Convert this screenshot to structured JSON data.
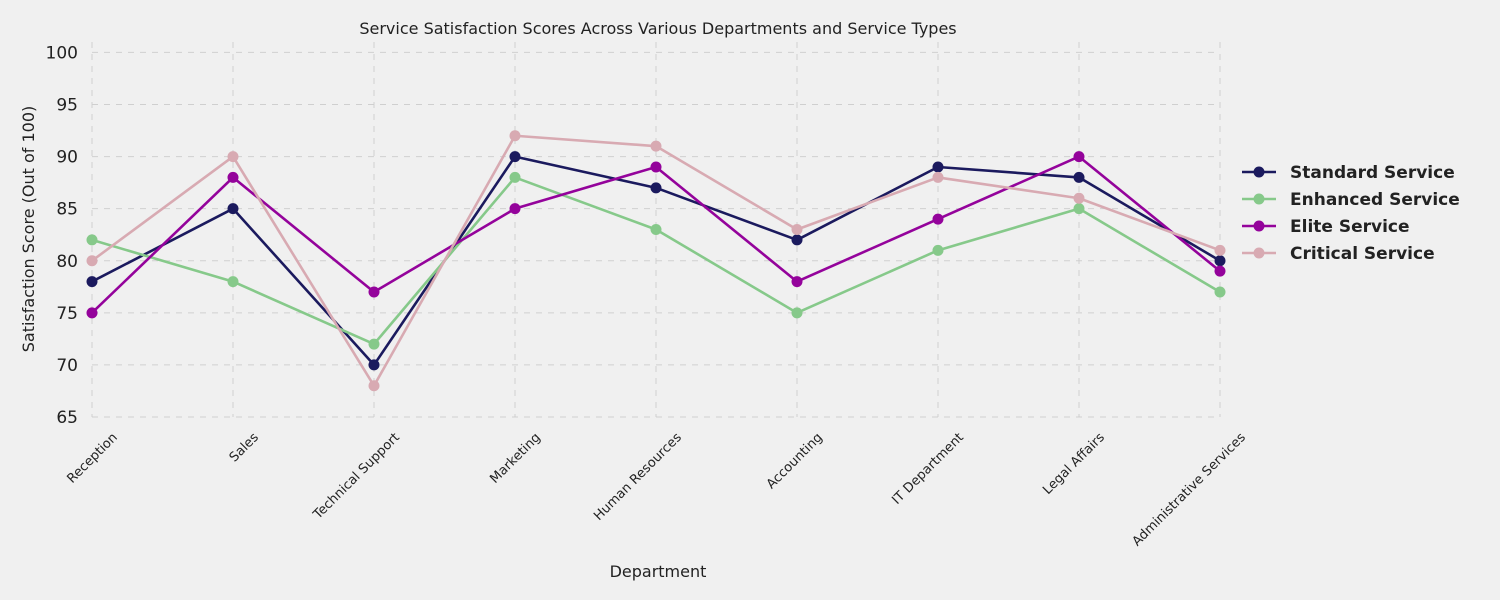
{
  "chart_data": {
    "type": "line",
    "title": "Service Satisfaction Scores Across Various Departments and Service Types",
    "xlabel": "Department",
    "ylabel": "Satisfaction Score (Out of 100)",
    "ylim": [
      65,
      101
    ],
    "yticks": [
      65,
      70,
      75,
      80,
      85,
      90,
      95,
      100
    ],
    "grid": true,
    "legend_position": "right",
    "categories": [
      "Reception",
      "Sales",
      "Technical Support",
      "Marketing",
      "Human Resources",
      "Accounting",
      "IT Department",
      "Legal Affairs",
      "Administrative Services"
    ],
    "series": [
      {
        "name": "Standard Service",
        "color": "#1b1a5e",
        "values": [
          78,
          85,
          70,
          90,
          87,
          82,
          89,
          88,
          80
        ]
      },
      {
        "name": "Enhanced Service",
        "color": "#86c98a",
        "values": [
          82,
          78,
          72,
          88,
          83,
          75,
          81,
          85,
          77
        ]
      },
      {
        "name": "Elite Service",
        "color": "#94039b",
        "values": [
          75,
          88,
          77,
          85,
          89,
          78,
          84,
          90,
          79
        ]
      },
      {
        "name": "Critical Service",
        "color": "#d8aab2",
        "values": [
          80,
          90,
          68,
          92,
          91,
          83,
          88,
          86,
          81
        ]
      }
    ]
  }
}
